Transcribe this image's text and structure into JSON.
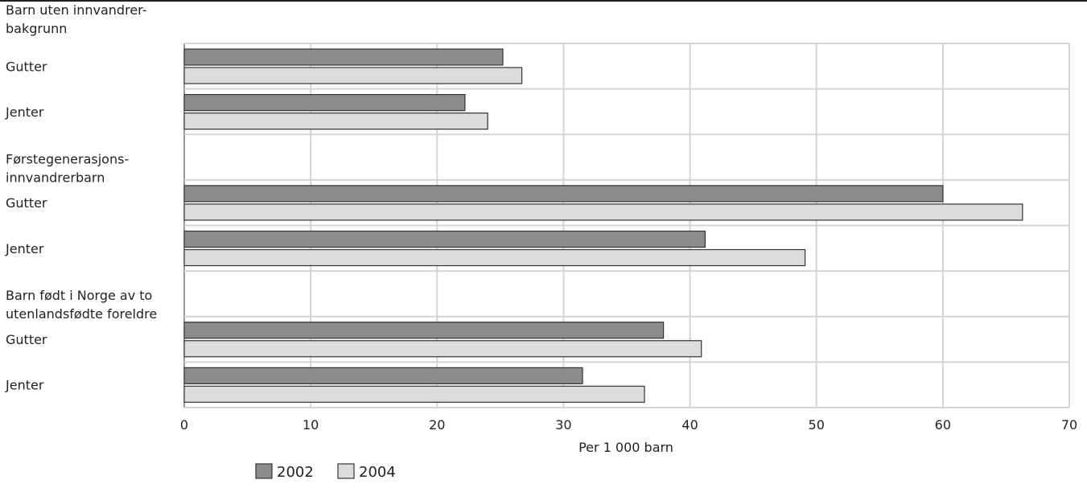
{
  "chart_data": {
    "type": "bar",
    "orientation": "horizontal",
    "title": "",
    "xlabel": "Per 1 000 barn",
    "ylabel": "",
    "xlim": [
      0,
      70
    ],
    "x_ticks": [
      0,
      10,
      20,
      30,
      40,
      50,
      60,
      70
    ],
    "grid": true,
    "legend_position": "bottom-left",
    "rows": [
      {
        "label": "Barn uten innvandrer-bakgrunn",
        "display_lines": [
          "Barn uten innvandrer-",
          "bakgrunn"
        ],
        "is_group_header": true
      },
      {
        "label": "Gutter",
        "display_lines": [
          "Gutter"
        ],
        "is_group_header": false,
        "values": [
          25.2,
          26.7
        ]
      },
      {
        "label": "Jenter",
        "display_lines": [
          "Jenter"
        ],
        "is_group_header": false,
        "values": [
          22.2,
          24.0
        ]
      },
      {
        "label": "Førstegenerasjons-innvandrerbarn",
        "display_lines": [
          "Førstegenerasjons-",
          "innvandrerbarn"
        ],
        "is_group_header": true
      },
      {
        "label": "Gutter",
        "display_lines": [
          "Gutter"
        ],
        "is_group_header": false,
        "values": [
          60.0,
          66.3
        ]
      },
      {
        "label": "Jenter",
        "display_lines": [
          "Jenter"
        ],
        "is_group_header": false,
        "values": [
          41.2,
          49.1
        ]
      },
      {
        "label": "Barn født i Norge av to utenlandsfødte foreldre",
        "display_lines": [
          "Barn født i Norge av to",
          "utenlandsfødte foreldre"
        ],
        "is_group_header": true
      },
      {
        "label": "Gutter",
        "display_lines": [
          "Gutter"
        ],
        "is_group_header": false,
        "values": [
          37.9,
          40.9
        ]
      },
      {
        "label": "Jenter",
        "display_lines": [
          "Jenter"
        ],
        "is_group_header": false,
        "values": [
          31.5,
          36.4
        ]
      }
    ],
    "series": [
      {
        "name": "2002",
        "color": "#8c8c8c"
      },
      {
        "name": "2004",
        "color": "#dcdcdc"
      }
    ]
  }
}
